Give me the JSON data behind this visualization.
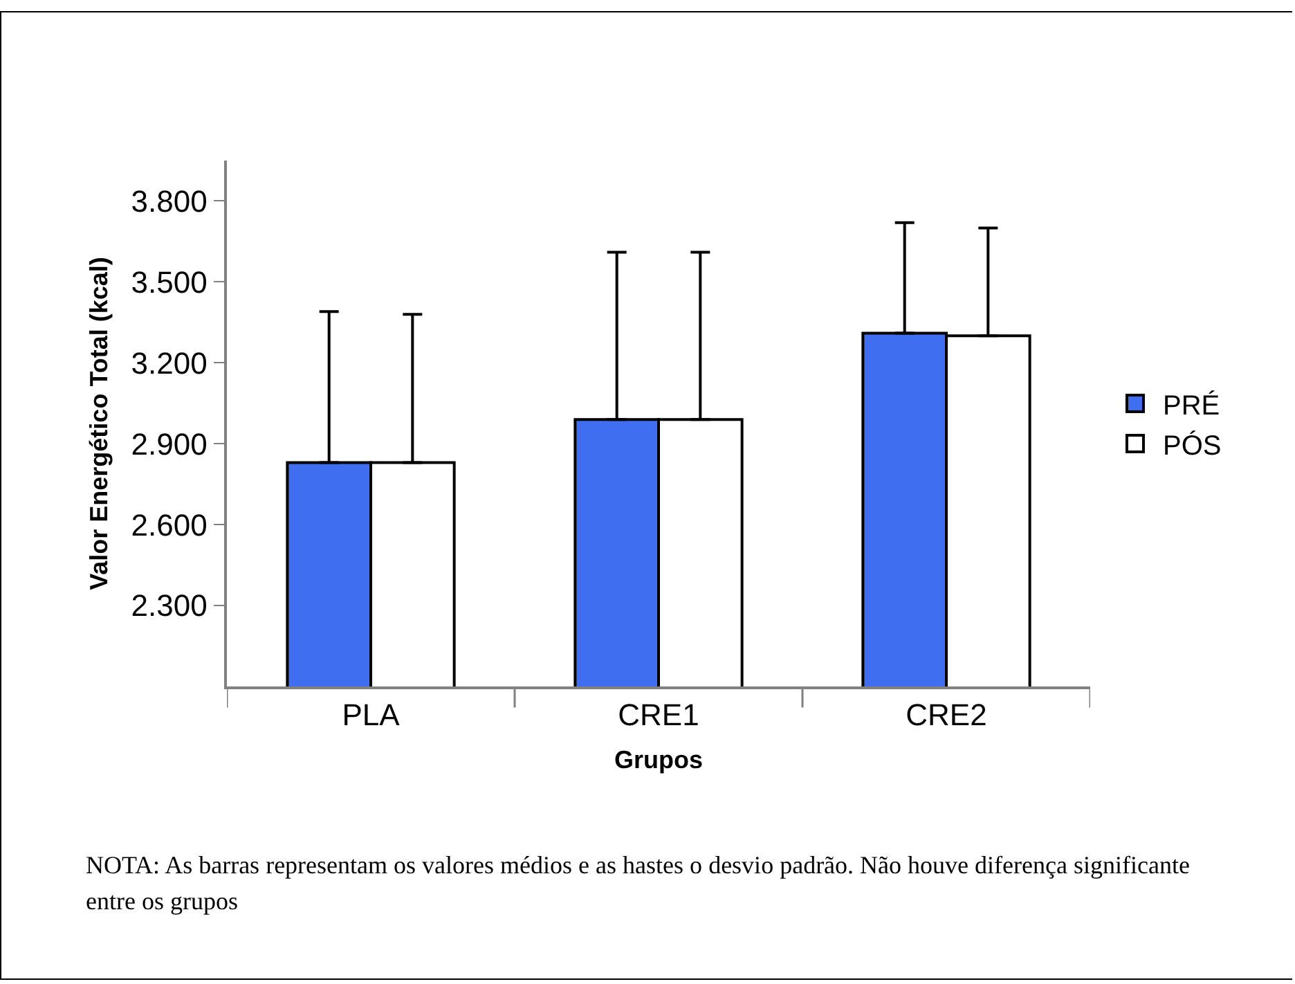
{
  "chart_data": {
    "type": "bar",
    "xlabel": "Grupos",
    "ylabel": "Valor Energético Total (kcal)",
    "categories": [
      "PLA",
      "CRE1",
      "CRE2"
    ],
    "series": [
      {
        "name": "PRÉ",
        "color": "#3f6ef0",
        "values": [
          2830,
          2990,
          3310
        ],
        "errors": [
          [
            2830,
            3390
          ],
          [
            2990,
            3610
          ],
          [
            3310,
            3720
          ]
        ]
      },
      {
        "name": "PÓS",
        "color": "#ffffff",
        "values": [
          2830,
          2990,
          3300
        ],
        "errors": [
          [
            2830,
            3380
          ],
          [
            2990,
            3610
          ],
          [
            3300,
            3700
          ]
        ]
      }
    ],
    "ylim": [
      2000,
      3950
    ],
    "yticks": [
      {
        "value": 2300,
        "label": "2.300"
      },
      {
        "value": 2600,
        "label": "2.600"
      },
      {
        "value": 2900,
        "label": "2.900"
      },
      {
        "value": 3200,
        "label": "3.200"
      },
      {
        "value": 3500,
        "label": "3.500"
      },
      {
        "value": 3800,
        "label": "3.800"
      }
    ],
    "grid": false,
    "legend": "right",
    "annotations": [
      "NOTA: As barras representam os valores médios e as hastes o desvio padrão. Não houve diferença significante entre os grupos"
    ]
  }
}
